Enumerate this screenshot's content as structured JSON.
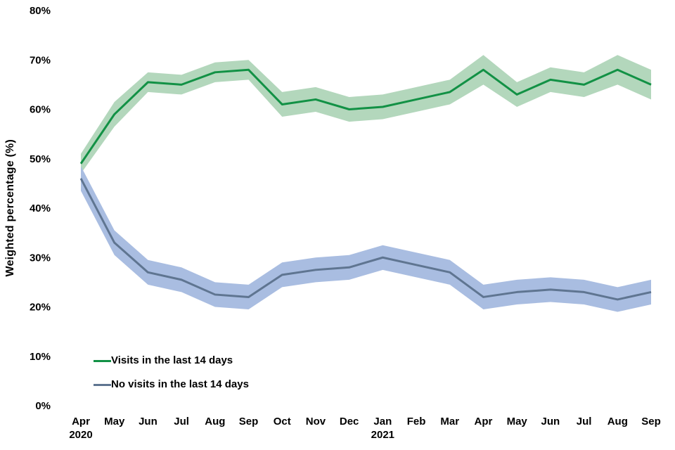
{
  "chart_data": {
    "type": "line",
    "title": "",
    "xlabel": "",
    "ylabel": "Weighted percentage (%)",
    "ylim": [
      0,
      80
    ],
    "y_ticks": [
      0,
      10,
      20,
      30,
      40,
      50,
      60,
      70,
      80
    ],
    "y_tick_suffix": "%",
    "grid": false,
    "axis_lines": false,
    "legend_position": "inside-bottom-left",
    "x_categories": [
      "Apr",
      "May",
      "Jun",
      "Jul",
      "Aug",
      "Sep",
      "Oct",
      "Nov",
      "Dec",
      "Jan",
      "Feb",
      "Mar",
      "Apr",
      "May",
      "Jun",
      "Jul",
      "Aug",
      "Sep"
    ],
    "x_year_labels": [
      {
        "index": 0,
        "label": "2020"
      },
      {
        "index": 9,
        "label": "2021"
      }
    ],
    "series": [
      {
        "name": "Visits in the last 14 days",
        "color": "#129145",
        "band_color": "#b3d7bc",
        "values": [
          49,
          59,
          65.5,
          65,
          67.5,
          68,
          61,
          62,
          60,
          60.5,
          62,
          63.5,
          68,
          63,
          66,
          65,
          68,
          65
        ],
        "upper": [
          51,
          61.5,
          67.5,
          67,
          69.5,
          70,
          63.5,
          64.5,
          62.5,
          63,
          64.5,
          66,
          71,
          65.5,
          68.5,
          67.5,
          71,
          68
        ],
        "lower": [
          47,
          56.5,
          63.5,
          63,
          65.5,
          66,
          58.5,
          59.5,
          57.5,
          58,
          59.5,
          61,
          65,
          60.5,
          63.5,
          62.5,
          65,
          62
        ]
      },
      {
        "name": "No visits in the last 14 days",
        "color": "#5f7591",
        "band_color": "#a9bde1",
        "values": [
          46,
          33,
          27,
          25.5,
          22.5,
          22,
          26.5,
          27.5,
          28,
          30,
          28.5,
          27,
          22,
          23,
          23.5,
          23,
          21.5,
          23
        ],
        "upper": [
          48.5,
          35.5,
          29.5,
          28,
          25,
          24.5,
          29,
          30,
          30.5,
          32.5,
          31,
          29.5,
          24.5,
          25.5,
          26,
          25.5,
          24,
          25.5
        ],
        "lower": [
          43.5,
          30.5,
          24.5,
          23,
          20,
          19.5,
          24,
          25,
          25.5,
          27.5,
          26,
          24.5,
          19.5,
          20.5,
          21,
          20.5,
          19,
          20.5
        ]
      }
    ]
  }
}
